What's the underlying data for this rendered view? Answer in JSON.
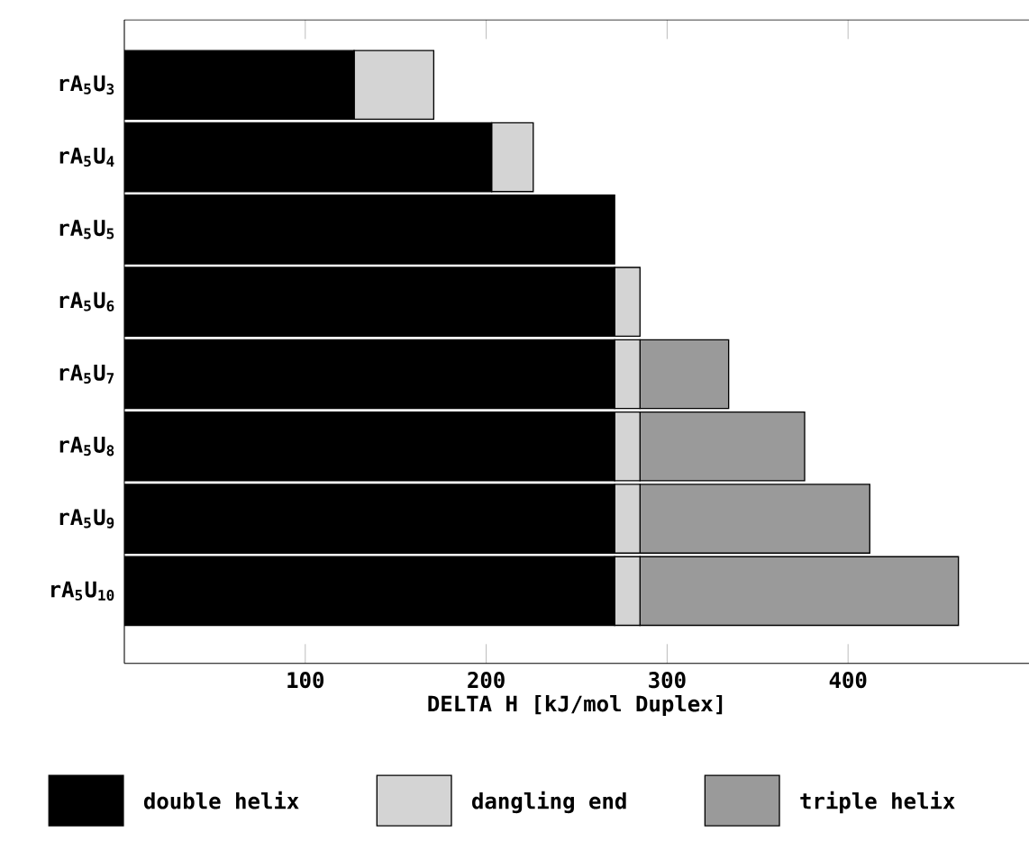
{
  "chart_data": {
    "type": "bar",
    "orientation": "horizontal",
    "stacked": true,
    "xlabel": "DELTA H [kJ/mol Duplex]",
    "categories": [
      "rA$_{5}$U$_{3}$",
      "rA$_{5}$U$_{4}$",
      "rA$_{5}$U$_{5}$",
      "rA$_{5}$U$_{6}$",
      "rA$_{5}$U$_{7}$",
      "rA$_{5}$U$_{8}$",
      "rA$_{5}$U$_{9}$",
      "rA$_{5}$U$_{10}$"
    ],
    "series": [
      {
        "name": "double helix",
        "color": "#000000",
        "values": [
          127,
          203,
          271,
          271,
          271,
          271,
          271,
          271
        ]
      },
      {
        "name": "dangling end",
        "color": "#d4d4d4",
        "values": [
          44,
          23,
          null,
          14,
          14,
          14,
          14,
          14
        ]
      },
      {
        "name": "triple helix",
        "color": "#9a9a9a",
        "values": [
          null,
          null,
          null,
          null,
          49,
          91,
          127,
          176
        ]
      }
    ],
    "xlim": [
      0,
      500
    ],
    "xticks": [
      100,
      200,
      300,
      400
    ],
    "grid": false,
    "legend": "bottom"
  }
}
